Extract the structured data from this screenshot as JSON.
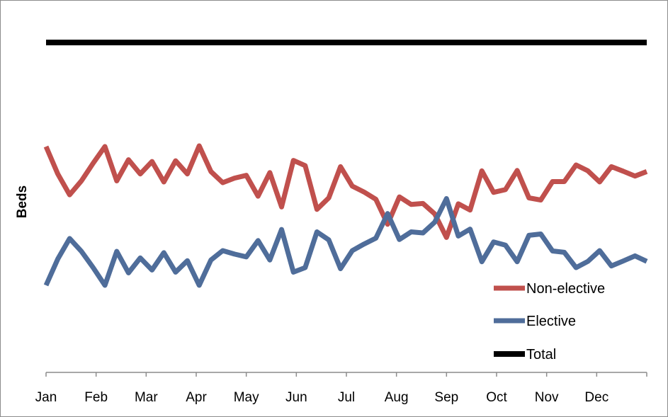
{
  "chart_data": {
    "type": "line",
    "title": "",
    "xlabel": "",
    "ylabel": "Beds",
    "x_tick_labels": [
      "Jan",
      "Feb",
      "Mar",
      "Apr",
      "May",
      "Jun",
      "Jul",
      "Aug",
      "Sep",
      "Oct",
      "Nov",
      "Dec"
    ],
    "x": [
      1,
      2,
      3,
      4,
      5,
      6,
      7,
      8,
      9,
      10,
      11,
      12,
      13,
      14,
      15,
      16,
      17,
      18,
      19,
      20,
      21,
      22,
      23,
      24,
      25,
      26,
      27,
      28,
      29,
      30,
      31,
      32,
      33,
      34,
      35,
      36,
      37,
      38,
      39,
      40,
      41,
      42,
      43,
      44,
      45,
      46,
      47,
      48,
      49,
      50,
      51,
      52
    ],
    "ylim": [
      0,
      100
    ],
    "y_ticks_shown": false,
    "grid": false,
    "legend_position": "bottom-right",
    "series": [
      {
        "name": "Non-elective",
        "color": "#c0504d",
        "values": [
          70.0,
          62.1,
          56.1,
          60.1,
          65.2,
          70.0,
          60.1,
          66.2,
          62.1,
          65.7,
          59.8,
          65.9,
          62.1,
          70.2,
          62.8,
          59.6,
          60.9,
          61.7,
          55.7,
          62.5,
          52.6,
          66.0,
          64.5,
          51.9,
          55.2,
          64.2,
          58.6,
          56.9,
          54.8,
          47.6,
          55.5,
          53.3,
          53.6,
          50.6,
          43.8,
          53.5,
          51.7,
          63.0,
          56.8,
          57.6,
          63.1,
          55.2,
          54.6,
          59.9,
          59.9,
          64.7,
          63.0,
          59.8,
          64.2,
          62.9,
          61.5,
          62.8
        ]
      },
      {
        "name": "Elective",
        "color": "#4f6d9a",
        "values": [
          30.0,
          37.6,
          43.5,
          39.8,
          35.1,
          30.0,
          39.8,
          33.6,
          37.9,
          34.4,
          39.4,
          33.8,
          37.1,
          30.0,
          37.3,
          40.0,
          39.0,
          38.2,
          42.9,
          37.3,
          46.1,
          33.8,
          35.1,
          45.4,
          43.1,
          34.8,
          40.0,
          41.9,
          43.6,
          50.7,
          43.2,
          45.4,
          45.1,
          48.2,
          55.0,
          44.2,
          46.2,
          36.8,
          42.5,
          41.6,
          36.8,
          44.4,
          44.8,
          39.9,
          39.5,
          35.1,
          36.9,
          40.0,
          35.6,
          37.0,
          38.5,
          36.9
        ]
      },
      {
        "name": "Total",
        "color": "#000000",
        "values": [
          100,
          100,
          100,
          100,
          100,
          100,
          100,
          100,
          100,
          100,
          100,
          100,
          100,
          100,
          100,
          100,
          100,
          100,
          100,
          100,
          100,
          100,
          100,
          100,
          100,
          100,
          100,
          100,
          100,
          100,
          100,
          100,
          100,
          100,
          100,
          100,
          100,
          100,
          100,
          100,
          100,
          100,
          100,
          100,
          100,
          100,
          100,
          100,
          100,
          100,
          100,
          100
        ]
      }
    ]
  }
}
